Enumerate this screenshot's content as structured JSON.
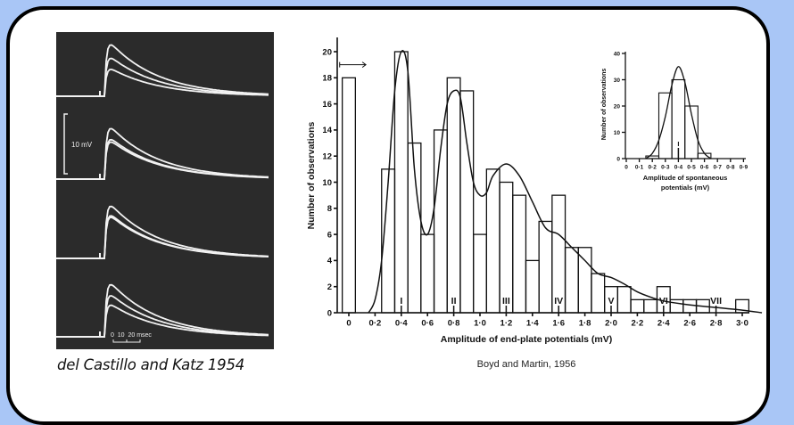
{
  "slide": {
    "left_caption": "del Castillo and Katz 1954",
    "right_caption": "Boyd and Martin, 1956"
  },
  "photo": {
    "description_label_voltage": "10 mV",
    "description_label_time": "0  10  20 msec"
  },
  "colors": {
    "background": "#a9c6f6",
    "panel": "#ffffff",
    "photo": "#2b2b2b",
    "trace": "#f2f2f2"
  },
  "chart_data": [
    {
      "type": "bar",
      "xlabel": "Amplitude of end-plate potentials (mV)",
      "ylabel": "Number of observations",
      "xlim": [
        -0.1,
        3.2
      ],
      "ylim": [
        0,
        21
      ],
      "x_ticks": [
        0,
        0.2,
        0.4,
        0.6,
        0.8,
        1.0,
        1.2,
        1.4,
        1.6,
        1.8,
        2.0,
        2.2,
        2.4,
        2.6,
        2.8,
        3.0
      ],
      "x_tick_labels": [
        "0",
        "0·2",
        "0·4",
        "0·6",
        "0·8",
        "1·0",
        "1·2",
        "1·4",
        "1·6",
        "1·8",
        "2·0",
        "2·2",
        "2·4",
        "2·6",
        "2·8",
        "3·0"
      ],
      "y_ticks": [
        0,
        2,
        4,
        6,
        8,
        10,
        12,
        14,
        16,
        18,
        20
      ],
      "y_tick_labels": [
        "0",
        "2",
        "4",
        "6",
        "8",
        "10",
        "12",
        "14",
        "16",
        "18",
        "20"
      ],
      "bin_width": 0.1,
      "x": [
        0,
        0.3,
        0.4,
        0.5,
        0.6,
        0.7,
        0.8,
        0.9,
        1.0,
        1.1,
        1.2,
        1.3,
        1.4,
        1.5,
        1.6,
        1.7,
        1.8,
        1.9,
        2.0,
        2.1,
        2.2,
        2.3,
        2.4,
        2.5,
        2.6,
        2.7,
        3.0
      ],
      "values": [
        18,
        11,
        20,
        13,
        6,
        14,
        18,
        17,
        6,
        11,
        10,
        9,
        4,
        7,
        9,
        5,
        5,
        3,
        2,
        2,
        1,
        1,
        2,
        1,
        1,
        1,
        1
      ],
      "peak_markers": [
        {
          "x": 0.4,
          "label": "I"
        },
        {
          "x": 0.8,
          "label": "II"
        },
        {
          "x": 1.2,
          "label": "III"
        },
        {
          "x": 1.6,
          "label": "IV"
        },
        {
          "x": 2.0,
          "label": "V"
        },
        {
          "x": 2.4,
          "label": "VI"
        },
        {
          "x": 2.8,
          "label": "VII"
        }
      ],
      "failure_range_arrow": {
        "from": 0,
        "to": 0.1,
        "y": 19
      },
      "fitted_curve": {
        "x": [
          0.15,
          0.2,
          0.25,
          0.3,
          0.35,
          0.4,
          0.45,
          0.5,
          0.55,
          0.6,
          0.65,
          0.7,
          0.75,
          0.8,
          0.85,
          0.9,
          0.95,
          1.0,
          1.05,
          1.1,
          1.2,
          1.3,
          1.4,
          1.5,
          1.6,
          1.7,
          1.8,
          1.9,
          2.0,
          2.1,
          2.2,
          2.3,
          2.4,
          2.6,
          2.8,
          3.0,
          3.15
        ],
        "y": [
          0,
          1,
          4,
          10,
          17,
          20,
          18.5,
          11,
          7,
          6,
          8,
          12.5,
          16,
          17,
          16.5,
          13,
          10,
          9,
          9.2,
          10.5,
          11.4,
          10.5,
          8.5,
          6.5,
          6,
          5,
          4,
          3,
          2.7,
          2.2,
          1.6,
          1.2,
          0.9,
          0.6,
          0.4,
          0.2,
          0
        ]
      }
    },
    {
      "type": "bar",
      "xlabel": "Amplitude of spontaneous",
      "xlabel_line2": "potentials   (mV)",
      "ylabel": "Number of observations",
      "xlim": [
        0,
        0.95
      ],
      "ylim": [
        0,
        40
      ],
      "x_ticks": [
        0,
        0.1,
        0.2,
        0.3,
        0.4,
        0.5,
        0.6,
        0.7,
        0.8,
        0.9
      ],
      "x_tick_labels": [
        "0",
        "0·1",
        "0·2",
        "0·3",
        "0·4",
        "0·5",
        "0·6",
        "0·7",
        "0·8",
        "0·9"
      ],
      "y_ticks": [
        0,
        10,
        20,
        30,
        40
      ],
      "y_tick_labels": [
        "0",
        "10",
        "20",
        "30",
        "40"
      ],
      "bin_width": 0.1,
      "x": [
        0.2,
        0.3,
        0.4,
        0.5,
        0.6
      ],
      "values": [
        1,
        25,
        30,
        20,
        2
      ],
      "peak_markers": [
        {
          "x": 0.4,
          "label": "I"
        }
      ],
      "fitted_curve": {
        "x": [
          0.15,
          0.2,
          0.25,
          0.3,
          0.35,
          0.4,
          0.45,
          0.5,
          0.55,
          0.6,
          0.65
        ],
        "y": [
          0,
          2,
          7,
          16,
          28,
          35,
          29,
          17,
          7,
          2,
          0
        ]
      }
    }
  ]
}
